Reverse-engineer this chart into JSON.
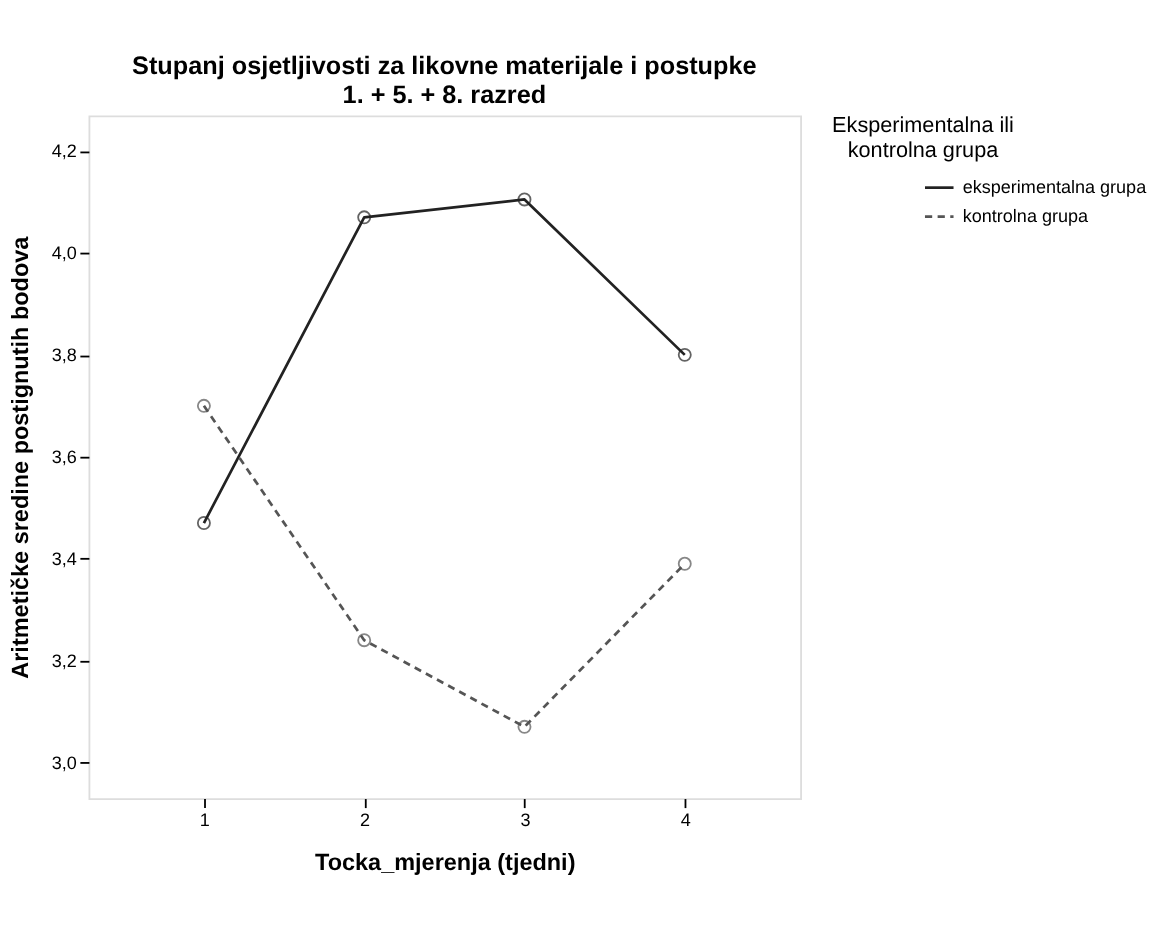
{
  "chart_data": {
    "type": "line",
    "title": "Stupanj osjetljivosti za likovne materijale i postupke\n1. + 5. + 8. razred",
    "xlabel": "Tocka_mjerenja (tjedni)",
    "ylabel": "Aritmetičke sredine postignutih bodova",
    "legend_title": "Eksperimentalna ili\nkontrolna grupa",
    "legend": "right",
    "marker": "circle",
    "grid": false,
    "x": [
      1,
      2,
      3,
      4
    ],
    "xlim": [
      0.28,
      4.72
    ],
    "xticks": [
      1,
      2,
      3,
      4
    ],
    "ylim": [
      2.93,
      4.27
    ],
    "yticks": [
      {
        "value": 3.0,
        "label": "3,0"
      },
      {
        "value": 3.2,
        "label": "3,2"
      },
      {
        "value": 3.4,
        "label": "3,4"
      },
      {
        "value": 3.6,
        "label": "3,6"
      },
      {
        "value": 3.8,
        "label": "3,8"
      },
      {
        "value": 4.0,
        "label": "4,0"
      },
      {
        "value": 4.2,
        "label": "4,2"
      }
    ],
    "series": [
      {
        "name": "eksperimentalna grupa",
        "color": "#222222",
        "line_style": "solid",
        "values": [
          3.47,
          4.07,
          4.105,
          3.8
        ]
      },
      {
        "name": "kontrolna grupa",
        "color": "#555555",
        "line_style": "dashed",
        "values": [
          3.7,
          3.24,
          3.07,
          3.39
        ]
      }
    ]
  }
}
